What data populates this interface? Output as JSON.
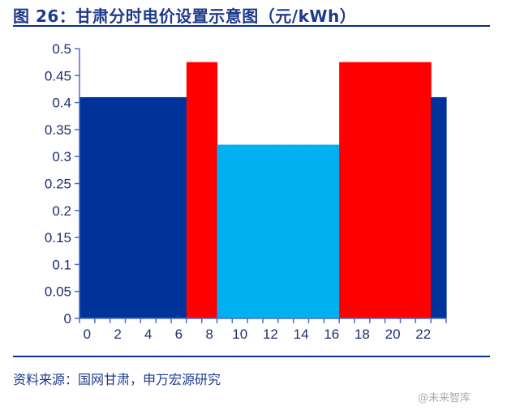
{
  "title": "图 26：甘肃分时电价设置示意图（元/kWh）",
  "source": "资料来源：国网甘肃，申万宏源研究",
  "watermark": "@未来智库",
  "chart_data": {
    "type": "bar",
    "title": "图 26：甘肃分时电价设置示意图（元/kWh）",
    "categories": [
      0,
      1,
      2,
      3,
      4,
      5,
      6,
      7,
      8,
      9,
      10,
      11,
      12,
      13,
      14,
      15,
      16,
      17,
      18,
      19,
      20,
      21,
      22,
      23
    ],
    "x_tick_labels": [
      "0",
      "2",
      "4",
      "6",
      "8",
      "10",
      "12",
      "14",
      "16",
      "18",
      "20",
      "22"
    ],
    "values": [
      0.41,
      0.41,
      0.41,
      0.41,
      0.41,
      0.41,
      0.41,
      0.475,
      0.475,
      0.322,
      0.322,
      0.322,
      0.322,
      0.322,
      0.322,
      0.322,
      0.322,
      0.475,
      0.475,
      0.475,
      0.475,
      0.475,
      0.475,
      0.41
    ],
    "period": [
      "flat",
      "flat",
      "flat",
      "flat",
      "flat",
      "flat",
      "flat",
      "peak",
      "peak",
      "valley",
      "valley",
      "valley",
      "valley",
      "valley",
      "valley",
      "valley",
      "valley",
      "peak",
      "peak",
      "peak",
      "peak",
      "peak",
      "peak",
      "flat"
    ],
    "colors": {
      "flat": "#003399",
      "peak": "#ff0000",
      "valley": "#00b0f0"
    },
    "ylim": [
      0,
      0.5
    ],
    "y_ticks": [
      "0",
      "0.05",
      "0.1",
      "0.15",
      "0.2",
      "0.25",
      "0.3",
      "0.35",
      "0.4",
      "0.45",
      "0.5"
    ],
    "grid": false,
    "xlabel": "",
    "ylabel": ""
  }
}
